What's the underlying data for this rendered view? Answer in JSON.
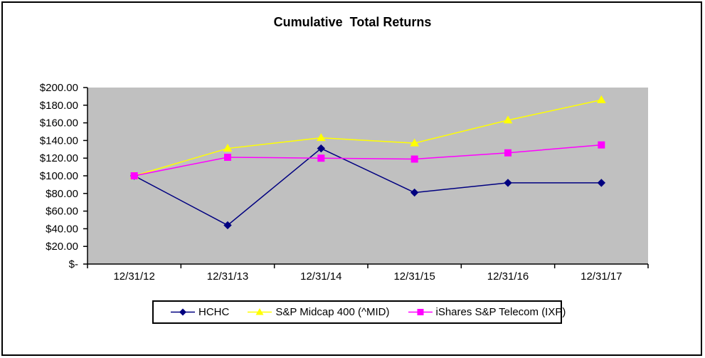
{
  "chart_data": {
    "type": "line",
    "title": "Cumulative  Total Returns",
    "categories": [
      "12/31/12",
      "12/31/13",
      "12/31/14",
      "12/31/15",
      "12/31/16",
      "12/31/17"
    ],
    "series": [
      {
        "name": "HCHC",
        "marker": "diamond",
        "color": "#000080",
        "values": [
          100,
          44,
          131,
          81,
          92,
          92
        ]
      },
      {
        "name": "S&P Midcap 400 (^MID)",
        "marker": "triangle",
        "color": "#FFFF00",
        "values": [
          100,
          131,
          143,
          137,
          163,
          186
        ]
      },
      {
        "name": "iShares S&P Telecom (IXP)",
        "marker": "square",
        "color": "#FF00FF",
        "values": [
          100,
          121,
          120,
          119,
          126,
          135
        ]
      }
    ],
    "y_axis": {
      "min": 0,
      "max": 200,
      "step": 20,
      "tick_labels": [
        "$-",
        "$20.00",
        "$40.00",
        "$60.00",
        "$80.00",
        "$100.00",
        "$120.00",
        "$140.00",
        "$160.00",
        "$180.00",
        "$200.00"
      ]
    },
    "x_axis": {
      "tick_labels": [
        "12/31/12",
        "12/31/13",
        "12/31/14",
        "12/31/15",
        "12/31/16",
        "12/31/17"
      ]
    },
    "legend_position": "bottom",
    "grid": false,
    "plot_background": "#C0C0C0",
    "axis_color": "#000000",
    "text_color": "#000000"
  }
}
